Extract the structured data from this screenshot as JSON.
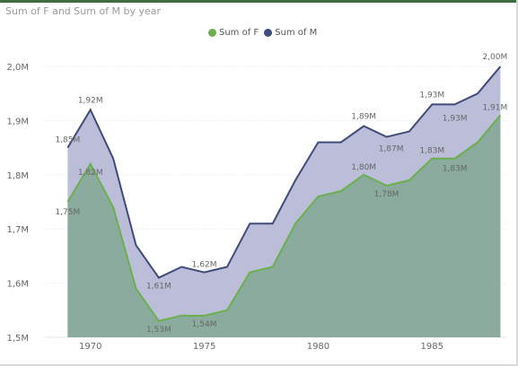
{
  "chart_data": {
    "type": "area",
    "title": "Sum of F and Sum of M by year",
    "x": [
      1969,
      1970,
      1971,
      1972,
      1973,
      1974,
      1975,
      1976,
      1977,
      1978,
      1979,
      1980,
      1981,
      1982,
      1983,
      1984,
      1985,
      1986,
      1987,
      1988
    ],
    "series": [
      {
        "name": "Sum of F",
        "color": "#6ab04c",
        "values": [
          1.75,
          1.82,
          1.74,
          1.59,
          1.53,
          1.54,
          1.54,
          1.55,
          1.62,
          1.63,
          1.71,
          1.76,
          1.77,
          1.8,
          1.78,
          1.79,
          1.83,
          1.83,
          1.86,
          1.91
        ]
      },
      {
        "name": "Sum of M",
        "color": "#3f4b7a",
        "values": [
          1.85,
          1.92,
          1.83,
          1.67,
          1.61,
          1.63,
          1.62,
          1.63,
          1.71,
          1.71,
          1.79,
          1.86,
          1.86,
          1.89,
          1.87,
          1.88,
          1.93,
          1.93,
          1.95,
          2.0
        ]
      }
    ],
    "data_labels": [
      {
        "series": 1,
        "x": 1969,
        "text": "1,85M"
      },
      {
        "series": 1,
        "x": 1970,
        "text": "1,92M"
      },
      {
        "series": 1,
        "x": 1973,
        "text": "1,61M"
      },
      {
        "series": 1,
        "x": 1975,
        "text": "1,62M"
      },
      {
        "series": 1,
        "x": 1982,
        "text": "1,89M"
      },
      {
        "series": 1,
        "x": 1985,
        "text": "1,93M"
      },
      {
        "series": 1,
        "x": 1988,
        "text": "2,00M"
      },
      {
        "series": 0,
        "x": 1969,
        "text": "1,75M"
      },
      {
        "series": 0,
        "x": 1970,
        "text": "1,82M"
      },
      {
        "series": 0,
        "x": 1973,
        "text": "1,53M"
      },
      {
        "series": 0,
        "x": 1975,
        "text": "1,54M"
      },
      {
        "series": 0,
        "x": 1982,
        "text": "1,80M"
      },
      {
        "series": 0,
        "x": 1983,
        "text": "1,78M"
      },
      {
        "series": 0,
        "x": 1983.2,
        "text": "1,87M"
      },
      {
        "series": 0,
        "x": 1985,
        "text": "1,83M"
      },
      {
        "series": 0,
        "x": 1986,
        "text": "1,83M"
      },
      {
        "series": 0,
        "x": 1986.3,
        "text": "1,93M"
      },
      {
        "series": 0,
        "x": 1988,
        "text": "1,91M"
      }
    ],
    "xticks": [
      1970,
      1975,
      1980,
      1985
    ],
    "yticks": [
      1.5,
      1.6,
      1.7,
      1.8,
      1.9,
      2.0
    ],
    "ytick_labels": [
      "1,5M",
      "1,6M",
      "1,7M",
      "1,8M",
      "1,9M",
      "2,0M"
    ],
    "xlim": [
      1968,
      1988.3
    ],
    "ylim": [
      1.5,
      2.02
    ],
    "grid": true,
    "legend_position": "top-center"
  }
}
